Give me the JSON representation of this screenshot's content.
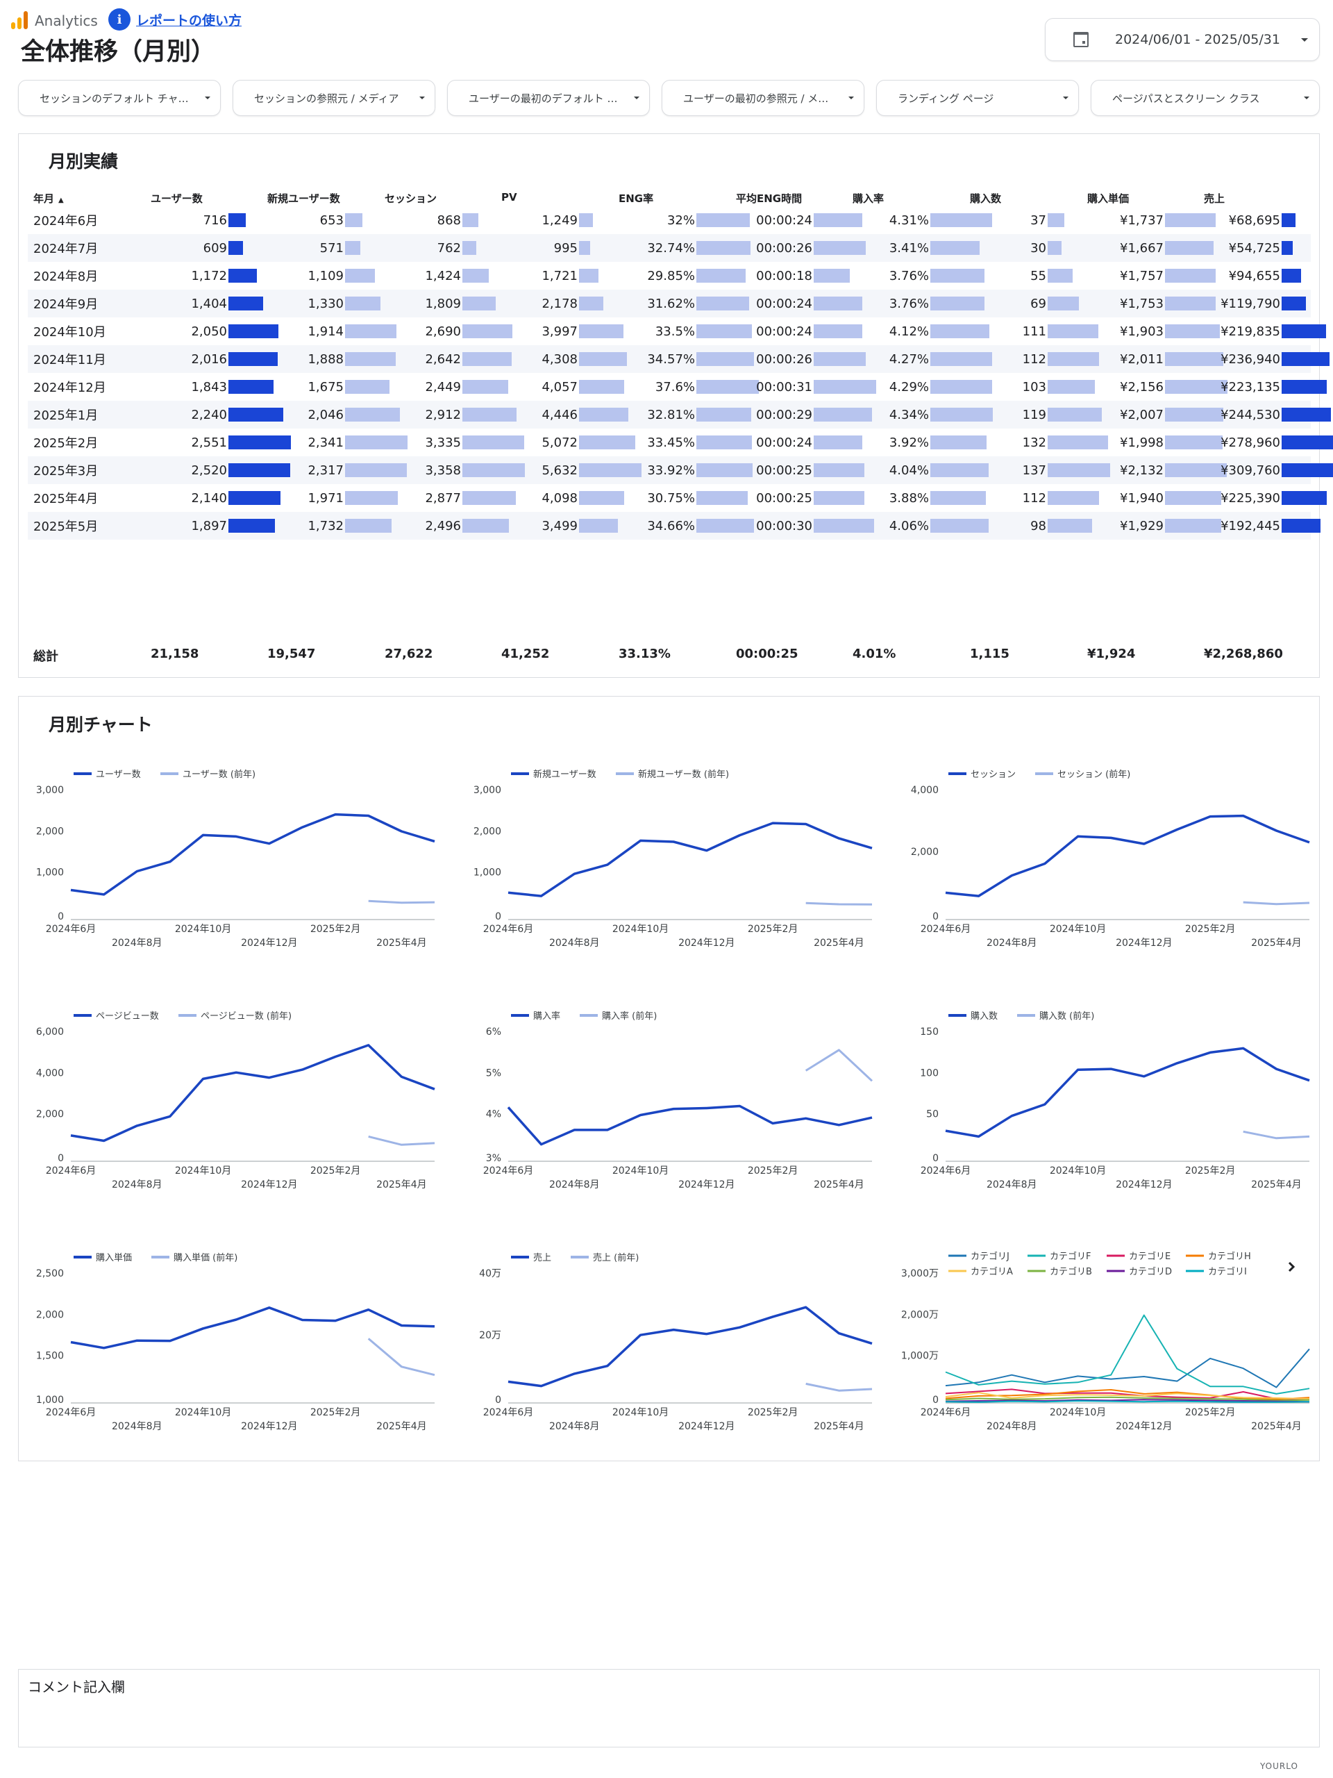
{
  "header": {
    "app_name": "Analytics",
    "help_link": "レポートの使い方",
    "title": "全体推移（月別）",
    "date_range": "2024/06/01 - 2025/05/31"
  },
  "filters": [
    "セッションのデフォルト チャ…",
    "セッションの参照元 / メディア",
    "ユーザーの最初のデフォルト …",
    "ユーザーの最初の参照元 / メ…",
    "ランディング ページ",
    "ページパスとスクリーン クラス"
  ],
  "table": {
    "title": "月別実績",
    "headers": [
      "年月",
      "ユーザー数",
      "新規ユーザー数",
      "セッション",
      "PV",
      "ENG率",
      "平均ENG時間",
      "購入率",
      "購入数",
      "購入単価",
      "売上"
    ],
    "sort_indicator": "▲",
    "rows": [
      {
        "month": "2024年6月",
        "users": "716",
        "new_users": "653",
        "sessions": "868",
        "pv": "1,249",
        "eng_rate": "32%",
        "eng_time": "00:00:24",
        "cvr": "4.31%",
        "purchases": "37",
        "aov": "¥1,737",
        "revenue": "¥68,695"
      },
      {
        "month": "2024年7月",
        "users": "609",
        "new_users": "571",
        "sessions": "762",
        "pv": "995",
        "eng_rate": "32.74%",
        "eng_time": "00:00:26",
        "cvr": "3.41%",
        "purchases": "30",
        "aov": "¥1,667",
        "revenue": "¥54,725"
      },
      {
        "month": "2024年8月",
        "users": "1,172",
        "new_users": "1,109",
        "sessions": "1,424",
        "pv": "1,721",
        "eng_rate": "29.85%",
        "eng_time": "00:00:18",
        "cvr": "3.76%",
        "purchases": "55",
        "aov": "¥1,757",
        "revenue": "¥94,655"
      },
      {
        "month": "2024年9月",
        "users": "1,404",
        "new_users": "1,330",
        "sessions": "1,809",
        "pv": "2,178",
        "eng_rate": "31.62%",
        "eng_time": "00:00:24",
        "cvr": "3.76%",
        "purchases": "69",
        "aov": "¥1,753",
        "revenue": "¥119,790"
      },
      {
        "month": "2024年10月",
        "users": "2,050",
        "new_users": "1,914",
        "sessions": "2,690",
        "pv": "3,997",
        "eng_rate": "33.5%",
        "eng_time": "00:00:24",
        "cvr": "4.12%",
        "purchases": "111",
        "aov": "¥1,903",
        "revenue": "¥219,835"
      },
      {
        "month": "2024年11月",
        "users": "2,016",
        "new_users": "1,888",
        "sessions": "2,642",
        "pv": "4,308",
        "eng_rate": "34.57%",
        "eng_time": "00:00:26",
        "cvr": "4.27%",
        "purchases": "112",
        "aov": "¥2,011",
        "revenue": "¥236,940"
      },
      {
        "month": "2024年12月",
        "users": "1,843",
        "new_users": "1,675",
        "sessions": "2,449",
        "pv": "4,057",
        "eng_rate": "37.6%",
        "eng_time": "00:00:31",
        "cvr": "4.29%",
        "purchases": "103",
        "aov": "¥2,156",
        "revenue": "¥223,135"
      },
      {
        "month": "2025年1月",
        "users": "2,240",
        "new_users": "2,046",
        "sessions": "2,912",
        "pv": "4,446",
        "eng_rate": "32.81%",
        "eng_time": "00:00:29",
        "cvr": "4.34%",
        "purchases": "119",
        "aov": "¥2,007",
        "revenue": "¥244,530"
      },
      {
        "month": "2025年2月",
        "users": "2,551",
        "new_users": "2,341",
        "sessions": "3,335",
        "pv": "5,072",
        "eng_rate": "33.45%",
        "eng_time": "00:00:24",
        "cvr": "3.92%",
        "purchases": "132",
        "aov": "¥1,998",
        "revenue": "¥278,960"
      },
      {
        "month": "2025年3月",
        "users": "2,520",
        "new_users": "2,317",
        "sessions": "3,358",
        "pv": "5,632",
        "eng_rate": "33.92%",
        "eng_time": "00:00:25",
        "cvr": "4.04%",
        "purchases": "137",
        "aov": "¥2,132",
        "revenue": "¥309,760"
      },
      {
        "month": "2025年4月",
        "users": "2,140",
        "new_users": "1,971",
        "sessions": "2,877",
        "pv": "4,098",
        "eng_rate": "30.75%",
        "eng_time": "00:00:25",
        "cvr": "3.88%",
        "purchases": "112",
        "aov": "¥1,940",
        "revenue": "¥225,390"
      },
      {
        "month": "2025年5月",
        "users": "1,897",
        "new_users": "1,732",
        "sessions": "2,496",
        "pv": "3,499",
        "eng_rate": "34.66%",
        "eng_time": "00:00:30",
        "cvr": "4.06%",
        "purchases": "98",
        "aov": "¥1,929",
        "revenue": "¥192,445"
      }
    ],
    "bar_max": {
      "users": 2551,
      "new_users": 2341,
      "sessions": 3358,
      "pv": 5632,
      "eng_rate": 37.6,
      "eng_time": 31,
      "cvr": 4.34,
      "purchases": 137,
      "aov": 2156,
      "revenue": 309760
    },
    "totals": {
      "label": "総計",
      "users": "21,158",
      "new_users": "19,547",
      "sessions": "27,622",
      "pv": "41,252",
      "eng_rate": "33.13%",
      "eng_time": "00:00:25",
      "cvr": "4.01%",
      "purchases": "1,115",
      "aov": "¥1,924",
      "revenue": "¥2,268,860"
    }
  },
  "charts_section": {
    "title": "月別チャート",
    "x_ticks_top": [
      "2024年6月",
      "2024年10月",
      "2025年2月"
    ],
    "x_ticks_bottom": [
      "2024年8月",
      "2024年12月",
      "2025年4月"
    ]
  },
  "chart_data": [
    {
      "type": "line",
      "series": [
        {
          "name": "ユーザー数",
          "values": [
            716,
            609,
            1172,
            1404,
            2050,
            2016,
            1843,
            2240,
            2551,
            2520,
            2140,
            1897
          ]
        },
        {
          "name": "ユーザー数 (前年)",
          "values": [
            null,
            null,
            null,
            null,
            null,
            null,
            null,
            null,
            null,
            450,
            410,
            420
          ]
        }
      ],
      "yticks": [
        "0",
        "1,000",
        "2,000",
        "3,000"
      ],
      "ylim": [
        0,
        3000
      ]
    },
    {
      "type": "line",
      "series": [
        {
          "name": "新規ユーザー数",
          "values": [
            653,
            571,
            1109,
            1330,
            1914,
            1888,
            1675,
            2046,
            2341,
            2317,
            1971,
            1732
          ]
        },
        {
          "name": "新規ユーザー数 (前年)",
          "values": [
            null,
            null,
            null,
            null,
            null,
            null,
            null,
            null,
            null,
            400,
            370,
            365
          ]
        }
      ],
      "yticks": [
        "0",
        "1,000",
        "2,000",
        "3,000"
      ],
      "ylim": [
        0,
        3000
      ]
    },
    {
      "type": "line",
      "series": [
        {
          "name": "セッション",
          "values": [
            868,
            762,
            1424,
            1809,
            2690,
            2642,
            2449,
            2912,
            3335,
            3358,
            2877,
            2496
          ]
        },
        {
          "name": "セッション (前年)",
          "values": [
            null,
            null,
            null,
            null,
            null,
            null,
            null,
            null,
            null,
            560,
            500,
            540
          ]
        }
      ],
      "yticks": [
        "0",
        "2,000",
        "4,000"
      ],
      "ylim": [
        0,
        4000
      ]
    },
    {
      "type": "line",
      "series": [
        {
          "name": "ページビュー数",
          "values": [
            1249,
            995,
            1721,
            2178,
            3997,
            4308,
            4057,
            4446,
            5072,
            5632,
            4098,
            3499
          ]
        },
        {
          "name": "ページビュー数 (前年)",
          "values": [
            null,
            null,
            null,
            null,
            null,
            null,
            null,
            null,
            null,
            1200,
            800,
            880
          ]
        }
      ],
      "yticks": [
        "0",
        "2,000",
        "4,000",
        "6,000"
      ],
      "ylim": [
        0,
        6000
      ]
    },
    {
      "type": "line",
      "series": [
        {
          "name": "購入率",
          "values": [
            4.31,
            3.41,
            3.76,
            3.76,
            4.12,
            4.27,
            4.29,
            4.34,
            3.92,
            4.04,
            3.88,
            4.06
          ]
        },
        {
          "name": "購入率 (前年)",
          "values": [
            null,
            null,
            null,
            null,
            null,
            null,
            null,
            null,
            null,
            5.2,
            5.7,
            4.95
          ]
        }
      ],
      "yticks": [
        "3%",
        "4%",
        "5%",
        "6%"
      ],
      "ylim": [
        3,
        6
      ]
    },
    {
      "type": "line",
      "series": [
        {
          "name": "購入数",
          "values": [
            37,
            30,
            55,
            69,
            111,
            112,
            103,
            119,
            132,
            137,
            112,
            98
          ]
        },
        {
          "name": "購入数 (前年)",
          "values": [
            null,
            null,
            null,
            null,
            null,
            null,
            null,
            null,
            null,
            36,
            28,
            30
          ]
        }
      ],
      "yticks": [
        "0",
        "50",
        "100",
        "150"
      ],
      "ylim": [
        0,
        150
      ]
    },
    {
      "type": "line",
      "series": [
        {
          "name": "購入単価",
          "values": [
            1737,
            1667,
            1757,
            1753,
            1903,
            2011,
            2156,
            2007,
            1998,
            2132,
            1940,
            1929
          ]
        },
        {
          "name": "購入単価 (前年)",
          "values": [
            null,
            null,
            null,
            null,
            null,
            null,
            null,
            null,
            null,
            1780,
            1440,
            1340
          ]
        }
      ],
      "yticks": [
        "1,000",
        "1,500",
        "2,000",
        "2,500"
      ],
      "ylim": [
        1000,
        2500
      ]
    },
    {
      "type": "line",
      "series": [
        {
          "name": "売上",
          "values": [
            68695,
            54725,
            94655,
            119790,
            219835,
            236940,
            223135,
            244530,
            278960,
            309760,
            225390,
            192445
          ]
        },
        {
          "name": "売上 (前年)",
          "values": [
            null,
            null,
            null,
            null,
            null,
            null,
            null,
            null,
            null,
            62000,
            40000,
            45000
          ]
        }
      ],
      "yticks": [
        "0",
        "20万",
        "40万"
      ],
      "ylim": [
        0,
        400000
      ]
    },
    {
      "type": "line",
      "series": [
        {
          "name": "カテゴリJ",
          "values": [
            4200000,
            5000000,
            6800000,
            5000000,
            6500000,
            5800000,
            6400000,
            5300000,
            10800000,
            8400000,
            3800000,
            13100000
          ]
        },
        {
          "name": "カテゴリF",
          "values": [
            7500000,
            4400000,
            5300000,
            4600000,
            5000000,
            6800000,
            21300000,
            8300000,
            4000000,
            4000000,
            2200000,
            3500000
          ]
        },
        {
          "name": "カテゴリE",
          "values": [
            2300000,
            2800000,
            3300000,
            2300000,
            2400000,
            2400000,
            1700000,
            1400000,
            1200000,
            2700000,
            1000000,
            900000
          ]
        },
        {
          "name": "カテゴリH",
          "values": [
            1100000,
            1700000,
            1800000,
            2100000,
            2800000,
            3200000,
            2200000,
            2600000,
            1900000,
            1100000,
            900000,
            1300000
          ]
        },
        {
          "name": "カテゴリA",
          "values": [
            1500000,
            2500000,
            1200000,
            1800000,
            2000000,
            1900000,
            1700000,
            2300000,
            1800000,
            1300000,
            1200000,
            1000000
          ]
        },
        {
          "name": "カテゴリB",
          "values": [
            800000,
            1100000,
            900000,
            1000000,
            1300000,
            1400000,
            1200000,
            1100000,
            1000000,
            900000,
            600000,
            700000
          ]
        },
        {
          "name": "カテゴリD",
          "values": [
            400000,
            500000,
            600000,
            500000,
            700000,
            600000,
            800000,
            700000,
            600000,
            500000,
            400000,
            300000
          ]
        },
        {
          "name": "カテゴリI",
          "values": [
            300000,
            200000,
            400000,
            300000,
            500000,
            400000,
            300000,
            400000,
            300000,
            200000,
            200000,
            300000
          ]
        }
      ],
      "yticks": [
        "0",
        "1,000万",
        "2,000万",
        "3,000万"
      ],
      "ylim": [
        0,
        30000000
      ]
    }
  ],
  "category_colors": [
    "#1f77b4",
    "#17b3b3",
    "#d81b60",
    "#f57c00",
    "#f9c74f",
    "#7cb342",
    "#6a1b9a",
    "#00acc1"
  ],
  "comment": {
    "label": "コメント記入欄"
  },
  "watermark": "YOURLO"
}
